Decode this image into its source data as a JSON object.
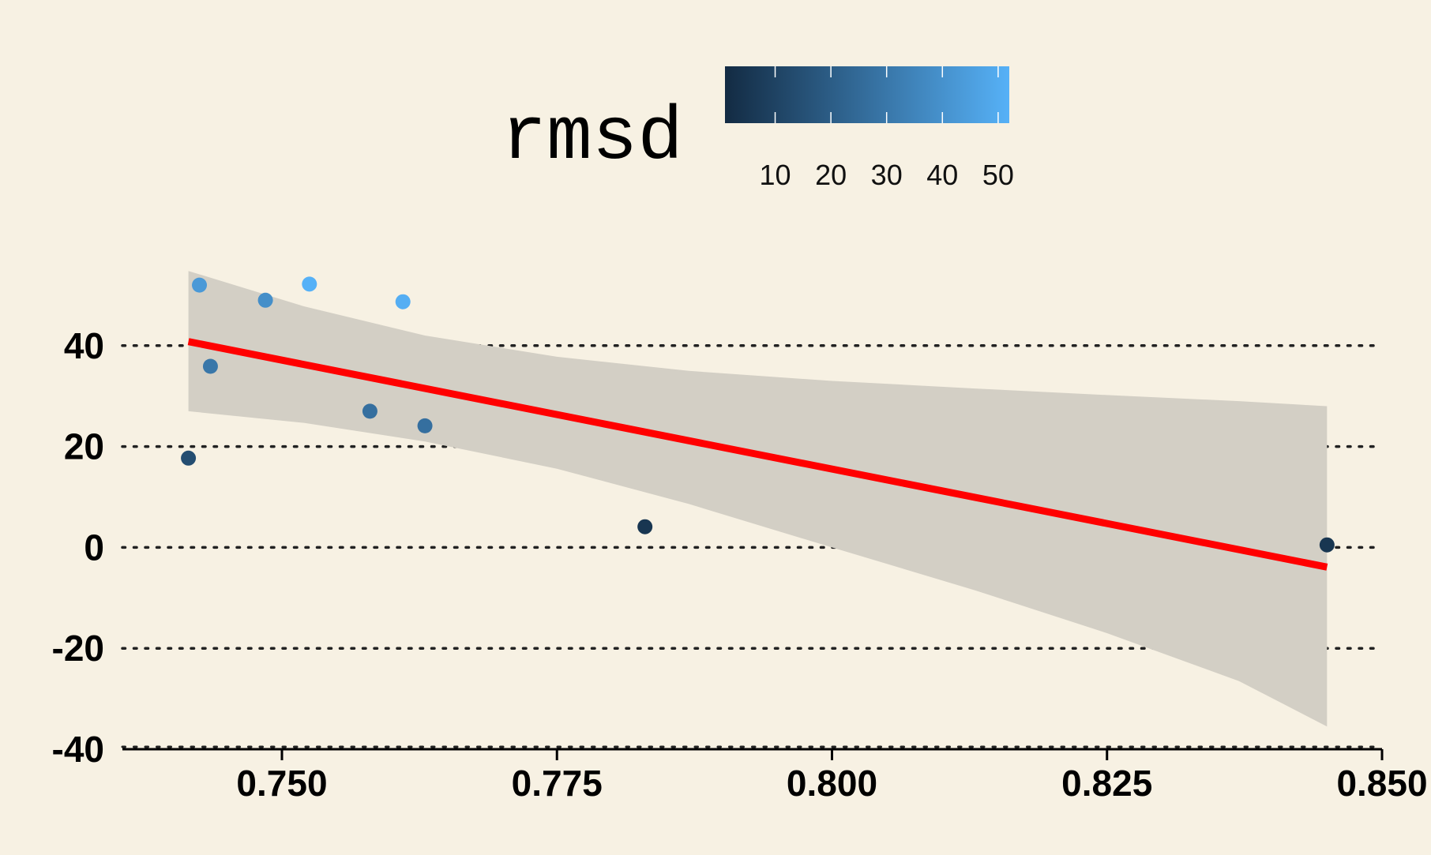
{
  "chart_data": {
    "type": "scatter",
    "title": "",
    "xlabel": "",
    "ylabel": "",
    "xlim": [
      0.7355,
      0.85
    ],
    "ylim": [
      -40,
      60
    ],
    "x_ticks": [
      0.75,
      0.775,
      0.8,
      0.825,
      0.85
    ],
    "x_tick_labels": [
      "0.750",
      "0.775",
      "0.800",
      "0.825",
      "0.850"
    ],
    "y_ticks": [
      -40,
      -20,
      0,
      20,
      40
    ],
    "y_tick_labels": [
      "-40",
      "-20",
      "0",
      "20",
      "40"
    ],
    "grid": "horizontal dotted",
    "legend": {
      "title": "rmsd",
      "placement": "top",
      "range": [
        1,
        52
      ],
      "ticks": [
        10,
        20,
        30,
        40,
        50
      ],
      "tick_labels": [
        "10",
        "20",
        "30",
        "40",
        "50"
      ],
      "color_low": "#132b43",
      "color_high": "#56b1f7"
    },
    "points": [
      {
        "x": 0.7415,
        "y": 17.7,
        "rmsd": 14
      },
      {
        "x": 0.7425,
        "y": 52.0,
        "rmsd": 43
      },
      {
        "x": 0.7435,
        "y": 35.9,
        "rmsd": 30
      },
      {
        "x": 0.7485,
        "y": 49.0,
        "rmsd": 39
      },
      {
        "x": 0.7525,
        "y": 52.2,
        "rmsd": 52
      },
      {
        "x": 0.758,
        "y": 27.0,
        "rmsd": 27
      },
      {
        "x": 0.761,
        "y": 48.7,
        "rmsd": 51
      },
      {
        "x": 0.763,
        "y": 24.1,
        "rmsd": 27
      },
      {
        "x": 0.783,
        "y": 4.1,
        "rmsd": 5
      },
      {
        "x": 0.845,
        "y": 0.5,
        "rmsd": 5
      }
    ],
    "fit": {
      "method": "linear",
      "x": [
        0.7415,
        0.845
      ],
      "y": [
        40.8,
        -3.9
      ],
      "color": "#ff0000"
    },
    "confidence_band": {
      "color": "#d3cfc5",
      "x": [
        0.7415,
        0.752,
        0.763,
        0.775,
        0.787,
        0.8,
        0.813,
        0.825,
        0.837,
        0.845
      ],
      "upper": [
        54.8,
        47.8,
        42.0,
        37.8,
        35.0,
        33.0,
        31.5,
        30.2,
        29.0,
        28.0
      ],
      "lower": [
        27.0,
        24.7,
        21.0,
        15.6,
        8.6,
        0.0,
        -8.5,
        -17.0,
        -26.5,
        -35.5
      ]
    }
  }
}
